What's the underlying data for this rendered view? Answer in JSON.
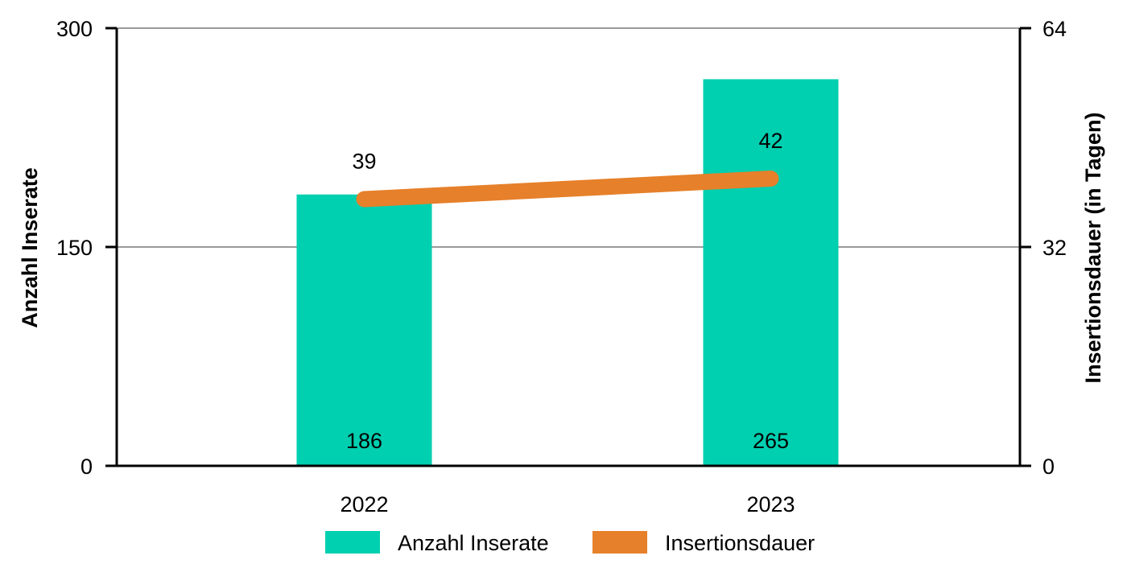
{
  "chart_data": {
    "type": "bar",
    "categories": [
      "2022",
      "2023"
    ],
    "series": [
      {
        "name": "Anzahl Inserate",
        "type": "bar",
        "axis": "left",
        "color": "#00CFB0",
        "values": [
          186,
          265
        ],
        "labels": [
          "186",
          "265"
        ]
      },
      {
        "name": "Insertionsdauer",
        "type": "line",
        "axis": "right",
        "color": "#E6802A",
        "values": [
          39,
          42
        ],
        "labels": [
          "39",
          "42"
        ]
      }
    ],
    "y_left": {
      "label": "Anzahl Inserate",
      "min": 0,
      "max": 300,
      "ticks": [
        0,
        150,
        300
      ]
    },
    "y_right": {
      "label": "Insertionsdauer (in Tagen)",
      "min": 0,
      "max": 64,
      "ticks": [
        0,
        32,
        64
      ]
    },
    "grid": true,
    "legend": "bottom"
  }
}
